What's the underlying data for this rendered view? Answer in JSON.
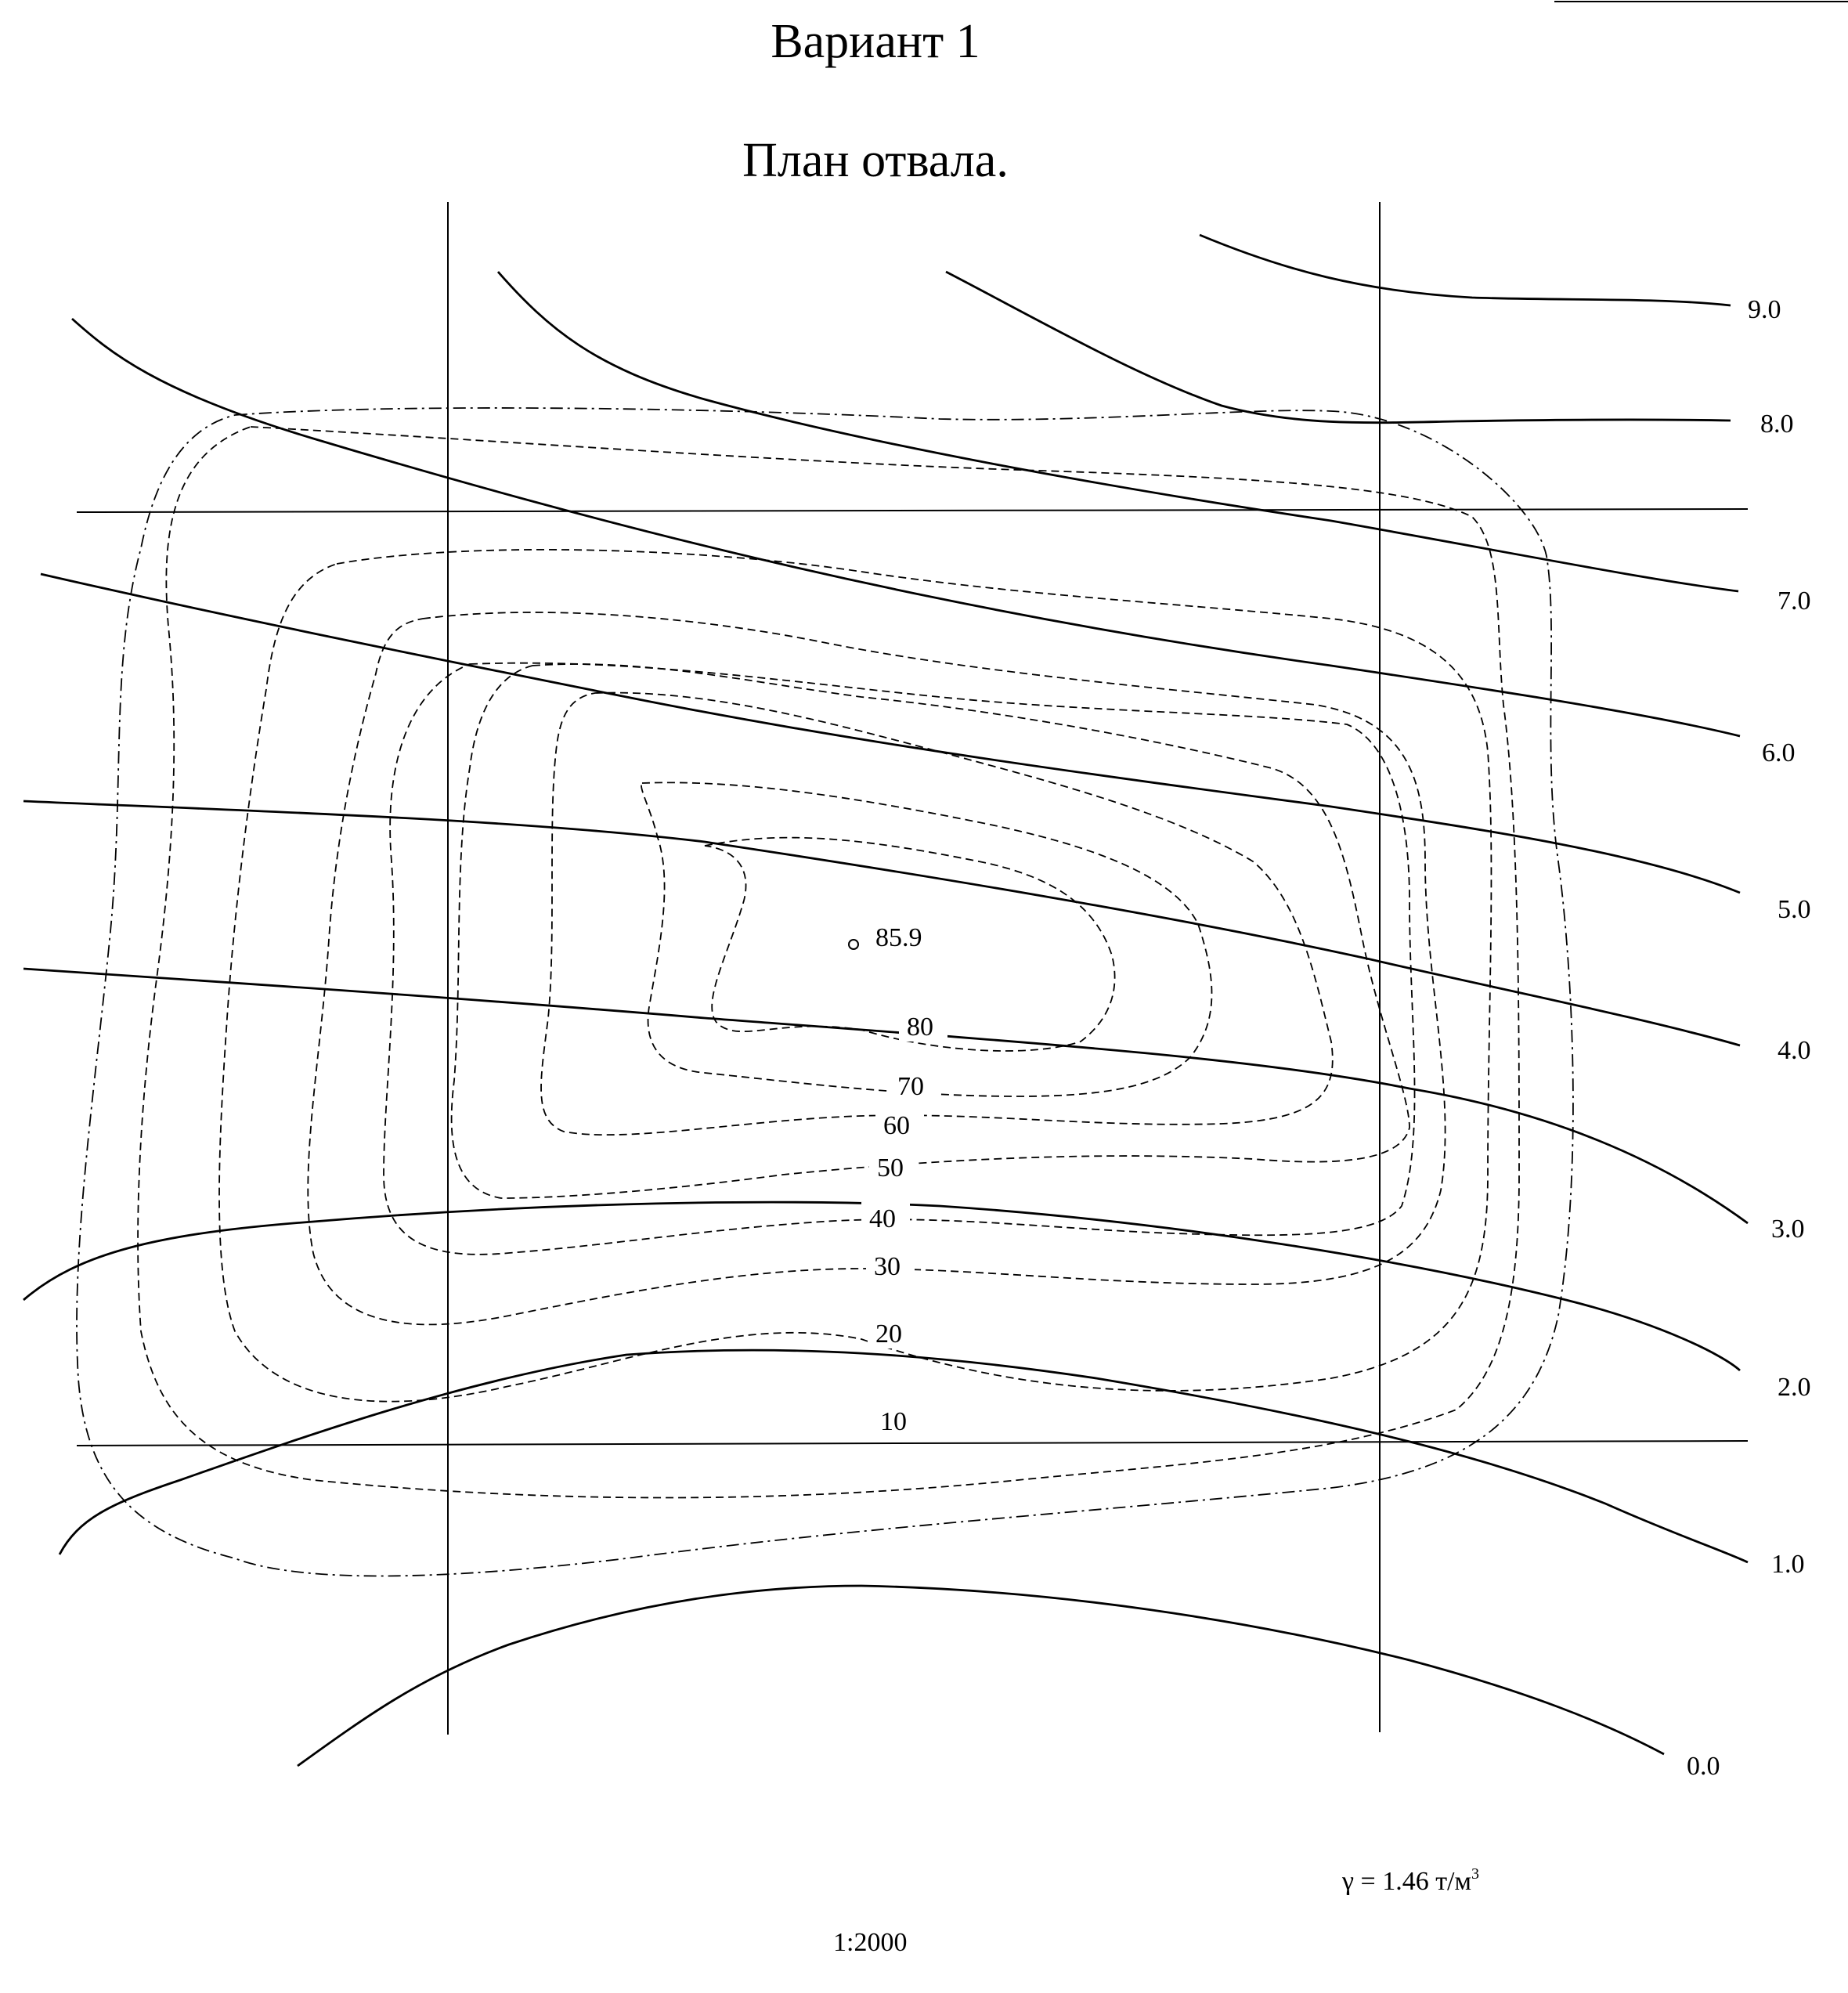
{
  "title": "Вариант 1",
  "subtitle": "План отвала.",
  "density": {
    "text": "γ = 1.46 т/м",
    "sup": "3"
  },
  "scale": "1:2000",
  "peak_label": "85.9",
  "isoline_labels": [
    "9.0",
    "8.0",
    "7.0",
    "6.0",
    "5.0",
    "4.0",
    "3.0",
    "2.0",
    "1.0",
    "0.0"
  ],
  "contour_labels": [
    "80",
    "70",
    "60",
    "50",
    "40",
    "30",
    "20",
    "10"
  ]
}
